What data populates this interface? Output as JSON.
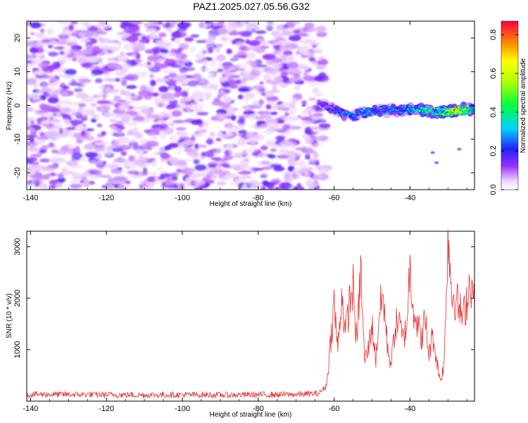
{
  "title": "PAZ1.2025.027.05.56.G32",
  "colors": {
    "snr_line": "#e53030",
    "spectral_low": "#9b30ff",
    "spectral_high": "#ff0033"
  },
  "chart_data": [
    {
      "type": "heatmap",
      "xlabel": "Height of straight line (km)",
      "ylabel": "Frequency (Hz)",
      "xlim": [
        -141,
        -23
      ],
      "ylim": [
        -25,
        25
      ],
      "x_ticks": [
        -140,
        -120,
        -100,
        -80,
        -60,
        -40
      ],
      "y_ticks": [
        -20,
        -10,
        0,
        10,
        20
      ],
      "colorbar": {
        "label": "Normalized spectral amplitude",
        "range": [
          0.0,
          0.87
        ],
        "ticks": [
          "0.0",
          "0.2",
          "0.4",
          "0.6",
          "0.8"
        ]
      },
      "noise_region_x": [
        -141,
        -62
      ],
      "signal_ridge": {
        "x": [
          -64,
          -60,
          -56,
          -52,
          -48,
          -44,
          -40,
          -36,
          -32,
          -28,
          -23
        ],
        "frequency": [
          0.5,
          -1.0,
          -3.5,
          -2.0,
          -1.5,
          -1.5,
          -1.0,
          -1.5,
          -2.0,
          -1.5,
          -1.0
        ],
        "amplitude": [
          0.15,
          0.25,
          0.3,
          0.3,
          0.3,
          0.3,
          0.35,
          0.45,
          0.45,
          0.8,
          0.35
        ]
      }
    },
    {
      "type": "line",
      "xlabel": "Height of straight line (km)",
      "ylabel": "SNR (10 * v/v)",
      "xlim": [
        -141,
        -23
      ],
      "ylim": [
        0,
        3300
      ],
      "x_ticks": [
        -140,
        -120,
        -100,
        -80,
        -60,
        -40
      ],
      "y_ticks": [
        1000,
        2000,
        3000
      ],
      "series": [
        {
          "x": [
            -141,
            -130,
            -120,
            -110,
            -100,
            -90,
            -80,
            -70,
            -64,
            -62,
            -61,
            -60,
            -59,
            -58,
            -57,
            -56,
            -55,
            -54,
            -53,
            -52,
            -51,
            -50,
            -49,
            -48,
            -47,
            -46,
            -45,
            -44,
            -43,
            -42,
            -41,
            -40,
            -39,
            -38,
            -37,
            -36,
            -35,
            -34,
            -33,
            -32,
            -31,
            -30,
            -29,
            -28,
            -27,
            -26,
            -25,
            -24,
            -23
          ],
          "y": [
            130,
            130,
            125,
            120,
            125,
            120,
            125,
            130,
            150,
            300,
            1100,
            1900,
            1000,
            2100,
            1300,
            1900,
            2200,
            1100,
            2600,
            800,
            1000,
            1500,
            800,
            1800,
            2000,
            1100,
            700,
            1400,
            1600,
            1200,
            1400,
            2600,
            1800,
            1500,
            1200,
            1600,
            900,
            1300,
            800,
            400,
            700,
            3300,
            2100,
            2000,
            1800,
            1600,
            2000,
            2400,
            1800
          ]
        }
      ]
    }
  ]
}
